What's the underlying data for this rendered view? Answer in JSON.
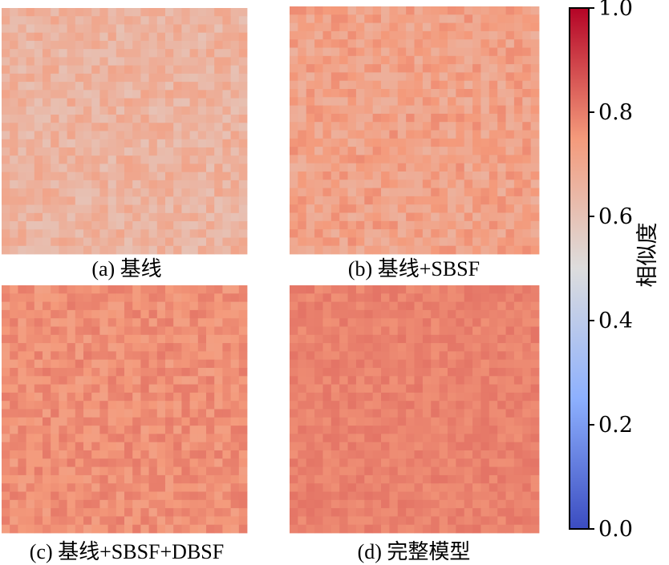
{
  "chart_data": [
    {
      "type": "heatmap",
      "caption": "(a) 基线",
      "grid": {
        "rows": 30,
        "cols": 30
      },
      "mean": 0.66,
      "spread": 0.035
    },
    {
      "type": "heatmap",
      "caption": "(b) 基线+SBSF",
      "grid": {
        "rows": 30,
        "cols": 30
      },
      "mean": 0.72,
      "spread": 0.035
    },
    {
      "type": "heatmap",
      "caption": "(c) 基线+SBSF+DBSF",
      "grid": {
        "rows": 30,
        "cols": 30
      },
      "mean": 0.765,
      "spread": 0.025
    },
    {
      "type": "heatmap",
      "caption": "(d) 完整模型",
      "grid": {
        "rows": 30,
        "cols": 30
      },
      "mean": 0.79,
      "spread": 0.015
    }
  ],
  "colorbar": {
    "label": "相似度",
    "range": [
      0.0,
      1.0
    ],
    "ticks": [
      "0.0",
      "0.2",
      "0.4",
      "0.6",
      "0.8",
      "1.0"
    ],
    "colormap": "coolwarm",
    "colors": {
      "0.0": "#3b4cc0",
      "0.25": "#8db0fe",
      "0.5": "#dddddd",
      "0.75": "#f49a7b",
      "1.0": "#b40426"
    }
  }
}
